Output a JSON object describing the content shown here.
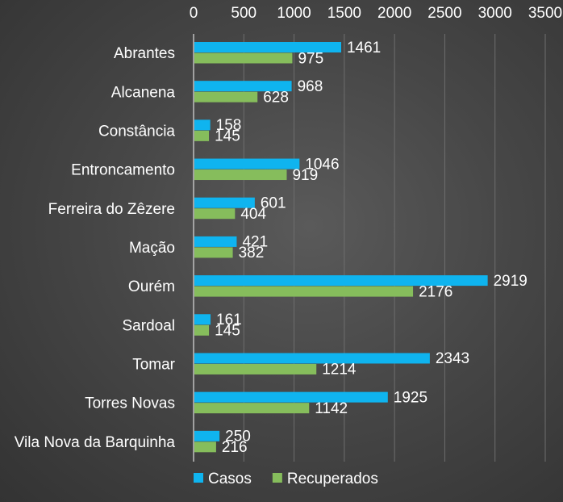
{
  "chart_data": {
    "type": "bar",
    "orientation": "horizontal",
    "title": "",
    "xlabel": "",
    "ylabel": "",
    "xlim": [
      0,
      3500
    ],
    "x_ticks": [
      "0",
      "500",
      "1000",
      "1500",
      "2000",
      "2500",
      "3000",
      "3500"
    ],
    "x_axis_position": "top",
    "grid": true,
    "legend_position": "bottom-left",
    "categories": [
      "Abrantes",
      "Alcanena",
      "Constância",
      "Entroncamento",
      "Ferreira do Zêzere",
      "Mação",
      "Ourém",
      "Sardoal",
      "Tomar",
      "Torres Novas",
      "Vila Nova da Barquinha"
    ],
    "series": [
      {
        "name": "Casos",
        "color": "#0fb4ef",
        "values": [
          1461,
          968,
          158,
          1046,
          601,
          421,
          2919,
          161,
          2343,
          1925,
          250
        ]
      },
      {
        "name": "Recuperados",
        "color": "#86bd5c",
        "values": [
          975,
          628,
          145,
          919,
          404,
          382,
          2176,
          145,
          1214,
          1142,
          216
        ]
      }
    ]
  }
}
